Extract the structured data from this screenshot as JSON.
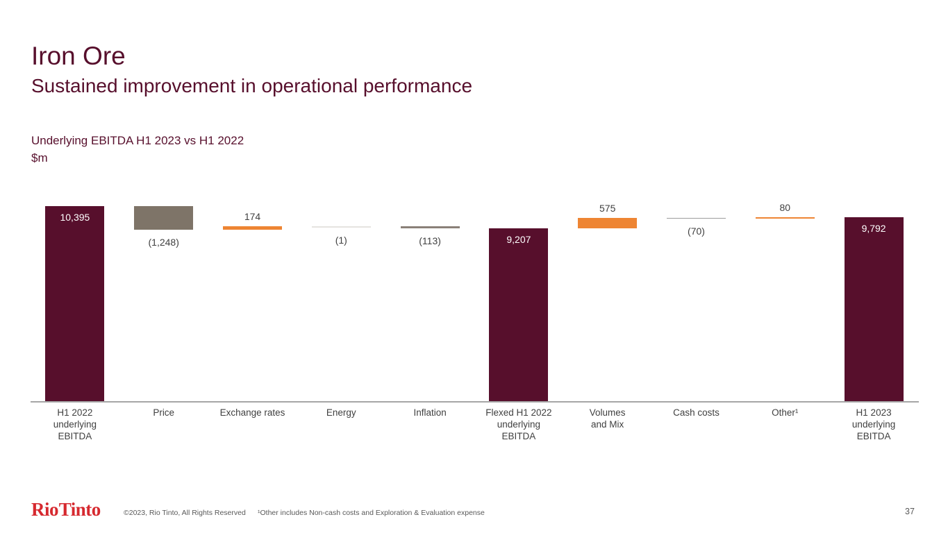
{
  "slide": {
    "title": "Iron Ore",
    "subtitle": "Sustained improvement in operational performance",
    "page_number": "37"
  },
  "chart": {
    "title": "Underlying EBITDA H1 2023 vs H1 2022",
    "unit": "$m"
  },
  "chart_data": {
    "type": "bar",
    "subtype": "waterfall",
    "title": "Underlying EBITDA H1 2023 vs H1 2022",
    "unit": "$m",
    "ylim": [
      0,
      10395
    ],
    "axis_line_color": "#a6a6a6",
    "colors": {
      "total": "#570f2c",
      "increase": "#ee8533",
      "decrease_gray": "#7e7468"
    },
    "points": [
      {
        "label": "H1 2022\nunderlying\nEBITDA",
        "value": 10395,
        "kind": "total",
        "display": "10,395",
        "label_pos": "inside",
        "color": "#570f2c"
      },
      {
        "label": "Price",
        "value": -1248,
        "kind": "delta",
        "display": "(1,248)",
        "label_pos": "below",
        "color": "#7e7468"
      },
      {
        "label": "Exchange rates",
        "value": 174,
        "kind": "delta",
        "display": "174",
        "label_pos": "above",
        "color": "#ee8533"
      },
      {
        "label": "Energy",
        "value": -1,
        "kind": "delta",
        "display": "(1)",
        "label_pos": "below",
        "color": "#e5e3e0"
      },
      {
        "label": "Inflation",
        "value": -113,
        "kind": "delta",
        "display": "(113)",
        "label_pos": "below",
        "color": "#8a8078"
      },
      {
        "label": "Flexed H1 2022\nunderlying\nEBITDA",
        "value": 9207,
        "kind": "total",
        "display": "9,207",
        "label_pos": "inside",
        "color": "#570f2c"
      },
      {
        "label": "Volumes\nand Mix",
        "value": 575,
        "kind": "delta",
        "display": "575",
        "label_pos": "above",
        "color": "#ee8533"
      },
      {
        "label": "Cash costs",
        "value": -70,
        "kind": "delta",
        "display": "(70)",
        "label_pos": "below",
        "color": "#9c9c9c"
      },
      {
        "label": "Other¹",
        "value": 80,
        "kind": "delta",
        "display": "80",
        "label_pos": "above",
        "color": "#ee8533"
      },
      {
        "label": "H1 2023\nunderlying\nEBITDA",
        "value": 9792,
        "kind": "total",
        "display": "9,792",
        "label_pos": "inside",
        "color": "#570f2c"
      }
    ]
  },
  "footer": {
    "logo": "Rio Tinto",
    "copyright": "©2023, Rio Tinto, All Rights Reserved",
    "footnote": "¹Other includes Non-cash costs and Exploration & Evaluation expense"
  }
}
